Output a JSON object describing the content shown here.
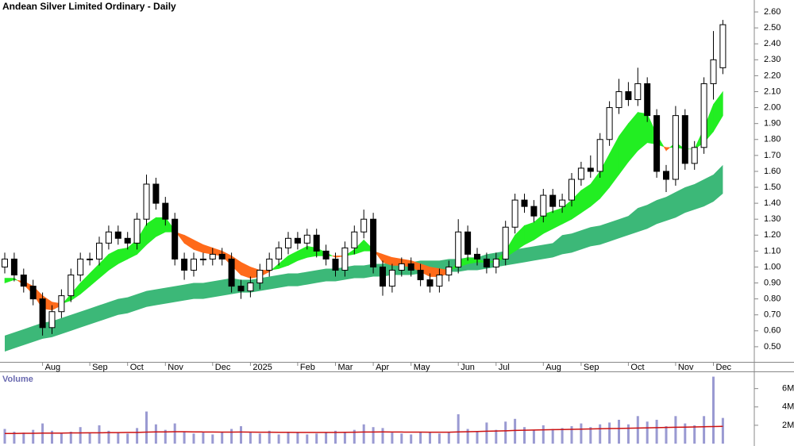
{
  "chart_data": [
    {
      "type": "candlestick",
      "title": "Andean Silver Limited Ordinary - Daily",
      "categories": [
        null,
        null,
        null,
        null,
        "Aug",
        null,
        null,
        null,
        null,
        "Sep",
        null,
        null,
        null,
        "Oct",
        null,
        null,
        null,
        "Nov",
        null,
        null,
        null,
        null,
        "Dec",
        null,
        null,
        null,
        "2025",
        null,
        null,
        null,
        null,
        "Feb",
        null,
        null,
        null,
        "Mar",
        null,
        null,
        null,
        "Apr",
        null,
        null,
        null,
        "May",
        null,
        null,
        null,
        null,
        "Jun",
        null,
        null,
        null,
        "Jul",
        null,
        null,
        null,
        null,
        "Aug",
        null,
        null,
        null,
        "Sep",
        null,
        null,
        null,
        null,
        "Oct",
        null,
        null,
        null,
        null,
        "Nov",
        null,
        null,
        null,
        "Dec",
        null
      ],
      "open": [
        1.0,
        1.05,
        0.95,
        0.88,
        0.8,
        0.62,
        0.72,
        0.82,
        0.95,
        1.05,
        1.05,
        1.15,
        1.22,
        1.18,
        1.15,
        1.3,
        1.52,
        1.4,
        1.3,
        1.05,
        0.98,
        1.05,
        1.05,
        1.08,
        1.05,
        0.88,
        0.85,
        0.9,
        0.98,
        1.05,
        1.12,
        1.18,
        1.15,
        1.2,
        1.1,
        1.05,
        0.98,
        1.12,
        1.22,
        1.3,
        1.0,
        0.88,
        0.98,
        1.02,
        0.98,
        0.92,
        0.88,
        0.95,
        1.0,
        1.22,
        1.08,
        1.05,
        1.0,
        1.05,
        1.25,
        1.42,
        1.38,
        1.32,
        1.45,
        1.38,
        1.42,
        1.55,
        1.62,
        1.6,
        1.8,
        2.0,
        2.1,
        2.05,
        2.15,
        1.95,
        1.6,
        1.55,
        1.95,
        1.65,
        1.75,
        2.15,
        2.25
      ],
      "high": [
        1.09,
        1.09,
        0.99,
        0.92,
        0.84,
        0.76,
        0.86,
        0.99,
        1.09,
        1.09,
        1.19,
        1.26,
        1.26,
        1.22,
        1.34,
        1.58,
        1.56,
        1.44,
        1.34,
        1.09,
        1.09,
        1.09,
        1.12,
        1.12,
        1.09,
        0.92,
        0.94,
        1.02,
        1.09,
        1.16,
        1.22,
        1.22,
        1.24,
        1.24,
        1.14,
        1.09,
        1.16,
        1.26,
        1.36,
        1.34,
        1.04,
        1.02,
        1.06,
        1.06,
        1.02,
        0.96,
        0.99,
        1.04,
        1.3,
        1.26,
        1.12,
        1.09,
        1.09,
        1.29,
        1.46,
        1.46,
        1.42,
        1.49,
        1.49,
        1.46,
        1.59,
        1.66,
        1.7,
        1.84,
        2.04,
        2.18,
        2.16,
        2.25,
        2.19,
        1.99,
        1.64,
        2.01,
        1.99,
        1.79,
        2.19,
        2.48,
        2.55
      ],
      "low": [
        0.96,
        0.91,
        0.84,
        0.76,
        0.57,
        0.58,
        0.68,
        0.78,
        0.91,
        1.01,
        1.01,
        1.11,
        1.14,
        1.11,
        1.11,
        1.26,
        1.36,
        1.26,
        1.01,
        0.92,
        0.94,
        1.01,
        1.01,
        1.01,
        0.84,
        0.8,
        0.81,
        0.86,
        0.94,
        1.01,
        1.08,
        1.11,
        1.11,
        1.06,
        1.01,
        0.94,
        0.94,
        1.08,
        1.18,
        0.96,
        0.82,
        0.84,
        0.94,
        0.94,
        0.88,
        0.84,
        0.84,
        0.91,
        0.96,
        1.04,
        1.01,
        0.96,
        0.96,
        1.01,
        1.21,
        1.34,
        1.28,
        1.28,
        1.34,
        1.34,
        1.38,
        1.51,
        1.56,
        1.56,
        1.76,
        1.96,
        2.01,
        2.01,
        1.91,
        1.56,
        1.47,
        1.51,
        1.61,
        1.61,
        1.71,
        2.05,
        2.21
      ],
      "close": [
        1.05,
        0.95,
        0.88,
        0.8,
        0.62,
        0.72,
        0.82,
        0.95,
        1.05,
        1.05,
        1.15,
        1.22,
        1.18,
        1.15,
        1.3,
        1.52,
        1.4,
        1.3,
        1.05,
        0.98,
        1.05,
        1.05,
        1.08,
        1.05,
        0.88,
        0.85,
        0.9,
        0.98,
        1.05,
        1.12,
        1.18,
        1.15,
        1.2,
        1.1,
        1.05,
        0.98,
        1.12,
        1.22,
        1.3,
        1.0,
        0.88,
        0.98,
        1.02,
        0.98,
        0.92,
        0.88,
        0.95,
        1.0,
        1.22,
        1.08,
        1.05,
        1.0,
        1.05,
        1.25,
        1.42,
        1.38,
        1.32,
        1.45,
        1.38,
        1.42,
        1.55,
        1.62,
        1.6,
        1.8,
        2.0,
        2.1,
        2.05,
        2.15,
        1.95,
        1.6,
        1.55,
        1.95,
        1.65,
        1.75,
        2.15,
        2.3,
        2.52
      ],
      "up_color": "#ffffff",
      "down_color": "#000000",
      "outline_color": "#000000",
      "long_band": {
        "color": "#3cb878",
        "lower": [
          0.47,
          0.49,
          0.51,
          0.53,
          0.55,
          0.56,
          0.58,
          0.6,
          0.62,
          0.64,
          0.66,
          0.68,
          0.7,
          0.71,
          0.73,
          0.75,
          0.76,
          0.77,
          0.78,
          0.79,
          0.8,
          0.8,
          0.81,
          0.82,
          0.83,
          0.84,
          0.84,
          0.85,
          0.86,
          0.87,
          0.88,
          0.88,
          0.89,
          0.9,
          0.91,
          0.91,
          0.92,
          0.93,
          0.93,
          0.94,
          0.94,
          0.95,
          0.95,
          0.95,
          0.96,
          0.96,
          0.96,
          0.97,
          0.97,
          0.98,
          0.98,
          0.99,
          1.0,
          1.01,
          1.02,
          1.03,
          1.04,
          1.05,
          1.06,
          1.08,
          1.09,
          1.11,
          1.13,
          1.14,
          1.16,
          1.18,
          1.2,
          1.22,
          1.24,
          1.27,
          1.29,
          1.31,
          1.34,
          1.36,
          1.38,
          1.41,
          1.46
        ],
        "upper": [
          0.57,
          0.59,
          0.61,
          0.63,
          0.65,
          0.66,
          0.68,
          0.7,
          0.72,
          0.74,
          0.76,
          0.78,
          0.8,
          0.81,
          0.83,
          0.85,
          0.86,
          0.87,
          0.88,
          0.89,
          0.9,
          0.9,
          0.91,
          0.92,
          0.93,
          0.92,
          0.92,
          0.93,
          0.94,
          0.95,
          0.96,
          0.96,
          0.97,
          0.98,
          0.99,
          0.99,
          1.0,
          1.01,
          1.01,
          1.02,
          1.02,
          1.03,
          1.03,
          1.03,
          1.04,
          1.04,
          1.04,
          1.05,
          1.05,
          1.06,
          1.06,
          1.08,
          1.09,
          1.1,
          1.11,
          1.12,
          1.13,
          1.14,
          1.15,
          1.2,
          1.21,
          1.23,
          1.25,
          1.26,
          1.28,
          1.3,
          1.32,
          1.37,
          1.39,
          1.42,
          1.44,
          1.47,
          1.5,
          1.52,
          1.55,
          1.58,
          1.64
        ]
      },
      "short_band": {
        "color": "#22ee22",
        "color_below": "#ff6a1a",
        "fast": [
          0.93,
          0.93,
          0.89,
          0.83,
          0.74,
          0.73,
          0.76,
          0.83,
          0.9,
          0.96,
          1.02,
          1.08,
          1.11,
          1.12,
          1.17,
          1.27,
          1.31,
          1.31,
          1.23,
          1.15,
          1.11,
          1.09,
          1.08,
          1.07,
          1.01,
          0.95,
          0.93,
          0.94,
          0.97,
          1.02,
          1.07,
          1.1,
          1.13,
          1.12,
          1.09,
          1.06,
          1.07,
          1.11,
          1.17,
          1.11,
          1.03,
          1.01,
          1.01,
          1.0,
          0.97,
          0.94,
          0.94,
          0.96,
          1.04,
          1.06,
          1.05,
          1.03,
          1.04,
          1.1,
          1.2,
          1.26,
          1.28,
          1.33,
          1.35,
          1.37,
          1.42,
          1.48,
          1.52,
          1.6,
          1.71,
          1.82,
          1.9,
          1.97,
          1.96,
          1.83,
          1.73,
          1.78,
          1.74,
          1.74,
          1.87,
          2.02,
          2.1
        ],
        "slow": [
          0.9,
          0.92,
          0.91,
          0.88,
          0.82,
          0.78,
          0.77,
          0.79,
          0.83,
          0.88,
          0.93,
          0.98,
          1.02,
          1.05,
          1.08,
          1.14,
          1.19,
          1.22,
          1.22,
          1.2,
          1.17,
          1.14,
          1.12,
          1.1,
          1.07,
          1.03,
          1.0,
          0.98,
          0.98,
          0.99,
          1.01,
          1.04,
          1.06,
          1.07,
          1.07,
          1.07,
          1.07,
          1.08,
          1.1,
          1.1,
          1.08,
          1.06,
          1.05,
          1.04,
          1.02,
          1.0,
          0.99,
          0.98,
          1.0,
          1.02,
          1.03,
          1.03,
          1.03,
          1.06,
          1.1,
          1.14,
          1.17,
          1.21,
          1.24,
          1.27,
          1.3,
          1.34,
          1.38,
          1.43,
          1.5,
          1.58,
          1.66,
          1.73,
          1.78,
          1.77,
          1.75,
          1.75,
          1.74,
          1.74,
          1.78,
          1.85,
          1.95
        ]
      },
      "ylim": [
        0.4,
        2.65
      ],
      "yticks": [
        {
          "value": 0.5,
          "label": "0.50"
        },
        {
          "value": 0.6,
          "label": "0.60"
        },
        {
          "value": 0.7,
          "label": "0.70"
        },
        {
          "value": 0.8,
          "label": "0.80"
        },
        {
          "value": 0.9,
          "label": "0.90"
        },
        {
          "value": 1.0,
          "label": "1.00"
        },
        {
          "value": 1.1,
          "label": "1.10"
        },
        {
          "value": 1.2,
          "label": "1.20"
        },
        {
          "value": 1.3,
          "label": "1.30"
        },
        {
          "value": 1.4,
          "label": "1.40"
        },
        {
          "value": 1.5,
          "label": "1.50"
        },
        {
          "value": 1.6,
          "label": "1.60"
        },
        {
          "value": 1.7,
          "label": "1.70"
        },
        {
          "value": 1.8,
          "label": "1.80"
        },
        {
          "value": 1.9,
          "label": "1.90"
        },
        {
          "value": 2.0,
          "label": "2.00"
        },
        {
          "value": 2.1,
          "label": "2.10"
        },
        {
          "value": 2.2,
          "label": "2.20"
        },
        {
          "value": 2.3,
          "label": "2.30"
        },
        {
          "value": 2.4,
          "label": "2.40"
        },
        {
          "value": 2.5,
          "label": "2.50"
        },
        {
          "value": 2.6,
          "label": "2.60"
        }
      ]
    },
    {
      "type": "bar",
      "title": "Volume",
      "color": "#9a9ad2",
      "average_color": "#cc1111",
      "values": [
        1600000,
        1300000,
        1200000,
        1500000,
        2200000,
        1400000,
        1100000,
        1300000,
        1800000,
        1200000,
        2000000,
        1400000,
        1200000,
        1100000,
        1700000,
        3500000,
        2100000,
        1500000,
        2200000,
        1300000,
        1100000,
        1200000,
        1000000,
        1300000,
        1600000,
        1900000,
        1200000,
        1100000,
        1400000,
        1000000,
        1300000,
        1200000,
        1000000,
        1100000,
        1200000,
        1400000,
        1300000,
        1500000,
        2100000,
        1800000,
        1700000,
        1200000,
        1100000,
        1000000,
        1300000,
        1200000,
        1100000,
        1200000,
        3200000,
        1600000,
        1300000,
        2300000,
        1500000,
        2400000,
        2700000,
        1800000,
        1500000,
        2000000,
        1600000,
        1700000,
        1900000,
        2200000,
        1800000,
        2100000,
        2300000,
        2600000,
        2100000,
        3000000,
        2400000,
        2600000,
        1900000,
        3000000,
        2200000,
        2000000,
        3000000,
        7300000,
        2800000
      ],
      "average": [
        1100000,
        1100000,
        1120000,
        1120000,
        1150000,
        1150000,
        1150000,
        1170000,
        1170000,
        1180000,
        1180000,
        1200000,
        1200000,
        1220000,
        1220000,
        1250000,
        1280000,
        1280000,
        1300000,
        1300000,
        1280000,
        1270000,
        1260000,
        1250000,
        1250000,
        1260000,
        1250000,
        1240000,
        1240000,
        1230000,
        1230000,
        1220000,
        1220000,
        1220000,
        1220000,
        1220000,
        1230000,
        1240000,
        1260000,
        1270000,
        1280000,
        1270000,
        1260000,
        1250000,
        1250000,
        1240000,
        1240000,
        1240000,
        1280000,
        1300000,
        1320000,
        1350000,
        1370000,
        1400000,
        1440000,
        1460000,
        1480000,
        1500000,
        1520000,
        1540000,
        1560000,
        1580000,
        1600000,
        1620000,
        1640000,
        1660000,
        1680000,
        1700000,
        1720000,
        1740000,
        1760000,
        1780000,
        1800000,
        1820000,
        1840000,
        1860000,
        1880000
      ],
      "ylim": [
        0,
        7700000
      ],
      "yticks": [
        {
          "value": 2000000,
          "label": "2M"
        },
        {
          "value": 4000000,
          "label": "4M"
        },
        {
          "value": 6000000,
          "label": "6M"
        }
      ]
    }
  ]
}
